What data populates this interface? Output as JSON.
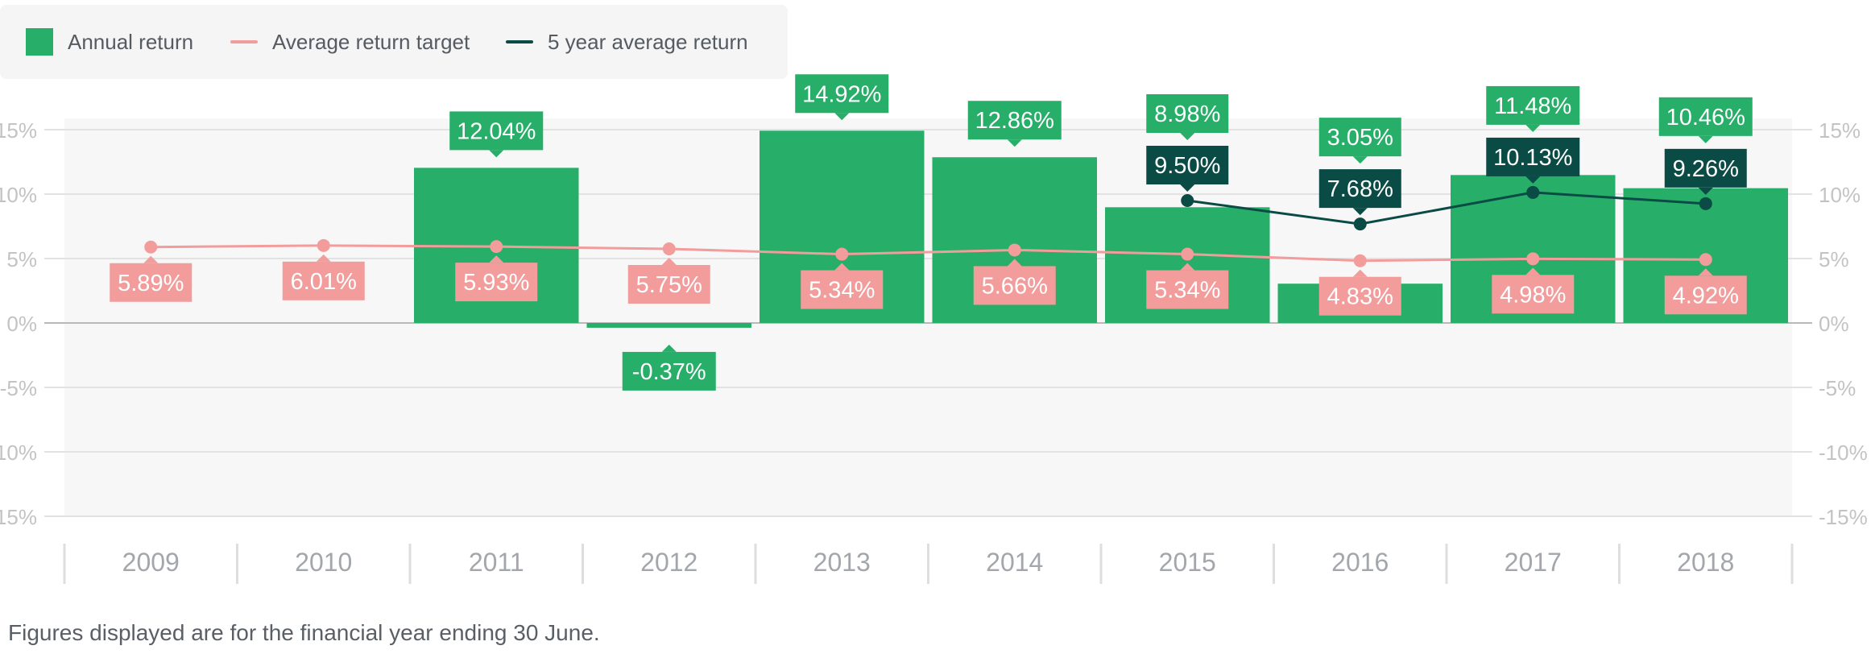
{
  "legend": {
    "annual": "Annual return",
    "target": "Average return target",
    "five_year": "5 year average return"
  },
  "footnote": "Figures displayed are for the financial year ending 30 June.",
  "colors": {
    "annual": "#27ae68",
    "target": "#f29c9c",
    "five_year": "#0b4b45",
    "plot_bg": "#f7f7f7",
    "grid": "#e2e2e2",
    "axis_text": "#c3c3c3",
    "category_text": "#a3a6aa"
  },
  "chart_data": {
    "type": "bar",
    "categories": [
      "2009",
      "2010",
      "2011",
      "2012",
      "2013",
      "2014",
      "2015",
      "2016",
      "2017",
      "2018"
    ],
    "ylim": [
      -15,
      15
    ],
    "yticks": [
      15,
      10,
      5,
      0,
      -5,
      -10,
      -15
    ],
    "ytick_labels": [
      "15%",
      "10%",
      "5%",
      "0%",
      "-5%",
      "-10%",
      "-15%"
    ],
    "grid": true,
    "legend_position": "top-left",
    "series": [
      {
        "name": "Annual return",
        "type": "bar",
        "values": [
          null,
          null,
          12.04,
          -0.37,
          14.92,
          12.86,
          8.98,
          3.05,
          11.48,
          10.46
        ],
        "labels": [
          "",
          "",
          "12.04%",
          "-0.37%",
          "14.92%",
          "12.86%",
          "8.98%",
          "3.05%",
          "11.48%",
          "10.46%"
        ]
      },
      {
        "name": "Average return target",
        "type": "line",
        "values": [
          5.89,
          6.01,
          5.93,
          5.75,
          5.34,
          5.66,
          5.34,
          4.83,
          4.98,
          4.92
        ],
        "labels": [
          "5.89%",
          "6.01%",
          "5.93%",
          "5.75%",
          "5.34%",
          "5.66%",
          "5.34%",
          "4.83%",
          "4.98%",
          "4.92%"
        ]
      },
      {
        "name": "5 year average return",
        "type": "line",
        "values": [
          null,
          null,
          null,
          null,
          null,
          null,
          9.5,
          7.68,
          10.13,
          9.26
        ],
        "labels": [
          "",
          "",
          "",
          "",
          "",
          "",
          "9.50%",
          "7.68%",
          "10.13%",
          "9.26%"
        ]
      }
    ]
  }
}
